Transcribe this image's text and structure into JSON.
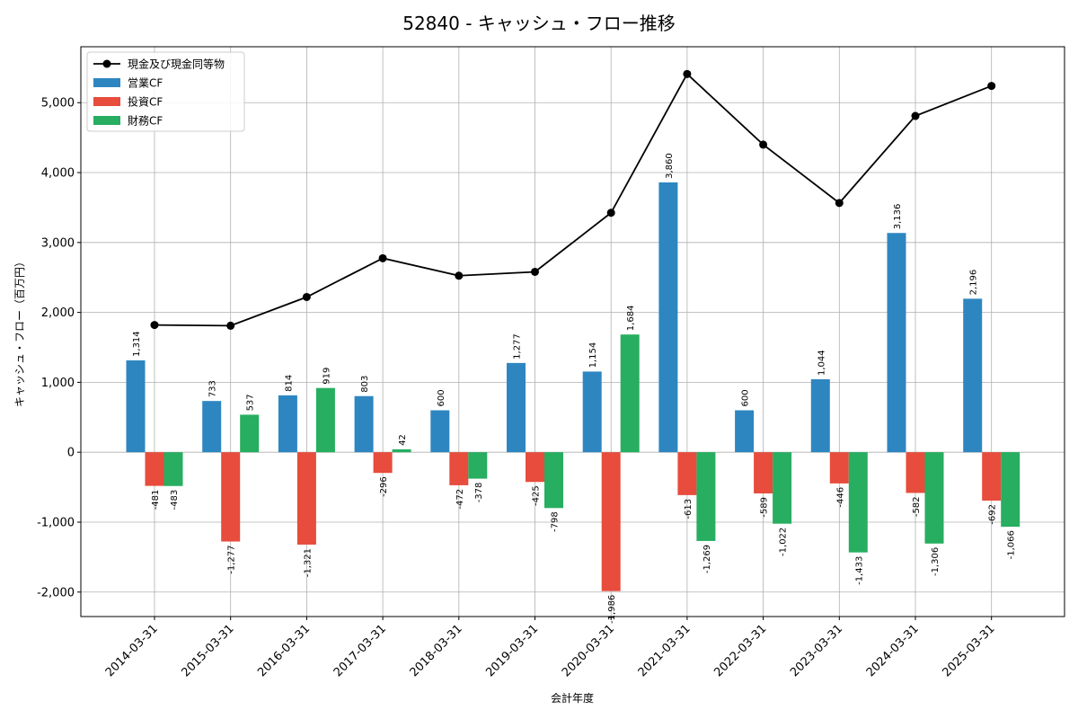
{
  "chart_data": {
    "type": "bar",
    "title": "52840 - キャッシュ・フロー推移",
    "xlabel": "会計年度",
    "ylabel": "キャッシュ・フロー（百万円）",
    "ylim": [
      -2350,
      5800
    ],
    "yticks": [
      -2000,
      -1000,
      0,
      1000,
      2000,
      3000,
      4000,
      5000
    ],
    "ytick_labels": [
      "-2,000",
      "-1,000",
      "0",
      "1,000",
      "2,000",
      "3,000",
      "4,000",
      "5,000"
    ],
    "grid": true,
    "legend_position": "top-left",
    "categories": [
      "2014-03-31",
      "2015-03-31",
      "2016-03-31",
      "2017-03-31",
      "2018-03-31",
      "2019-03-31",
      "2020-03-31",
      "2021-03-31",
      "2022-03-31",
      "2023-03-31",
      "2024-03-31",
      "2025-03-31"
    ],
    "series": [
      {
        "name": "営業CF",
        "kind": "bar",
        "color": "#2e86c1",
        "values": [
          1314,
          733,
          814,
          803,
          600,
          1277,
          1154,
          3860,
          600,
          1044,
          3136,
          2196
        ],
        "labels": [
          "1,314",
          "733",
          "814",
          "803",
          "600",
          "1,277",
          "1,154",
          "3,860",
          "600",
          "1,044",
          "3,136",
          "2,196"
        ]
      },
      {
        "name": "投資CF",
        "kind": "bar",
        "color": "#e74c3c",
        "values": [
          -481,
          -1277,
          -1321,
          -296,
          -472,
          -425,
          -1986,
          -613,
          -589,
          -446,
          -582,
          -692
        ],
        "labels": [
          "-481",
          "-1,277",
          "-1,321",
          "-296",
          "-472",
          "-425",
          "-1,986",
          "-613",
          "-589",
          "-446",
          "-582",
          "-692"
        ]
      },
      {
        "name": "財務CF",
        "kind": "bar",
        "color": "#27ae60",
        "values": [
          -483,
          537,
          919,
          42,
          -378,
          -798,
          1684,
          -1269,
          -1022,
          -1433,
          -1306,
          -1066
        ],
        "labels": [
          "-483",
          "537",
          "919",
          "42",
          "-378",
          "-798",
          "1,684",
          "-1,269",
          "-1,022",
          "-1,433",
          "-1,306",
          "-1,066"
        ]
      },
      {
        "name": "現金及び現金同等物",
        "kind": "line",
        "color": "#000000",
        "values": [
          1820,
          1810,
          2220,
          2775,
          2525,
          2580,
          3425,
          5410,
          4400,
          3565,
          4810,
          5240
        ]
      }
    ]
  }
}
